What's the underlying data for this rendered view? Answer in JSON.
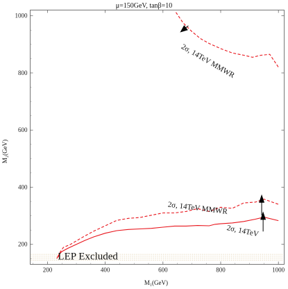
{
  "chart_data": {
    "type": "line",
    "title": "μ=150GeV, tanβ=10",
    "xlabel": "M₁(GeV)",
    "ylabel": "M₂(GeV)",
    "xlim": [
      140,
      1020
    ],
    "ylim": [
      130,
      1020
    ],
    "x_ticks": [
      200,
      400,
      600,
      800,
      1000
    ],
    "y_ticks": [
      200,
      400,
      600,
      800,
      1000
    ],
    "grid": false,
    "series": [
      {
        "name": "2σ, 14TeV",
        "style": "solid",
        "color": "#e8141b",
        "x": [
          232,
          240,
          250,
          270,
          300,
          330,
          360,
          400,
          440,
          480,
          520,
          560,
          600,
          640,
          680,
          720,
          760,
          780,
          800,
          840,
          880,
          920,
          950,
          1000
        ],
        "y": [
          150,
          165,
          175,
          186,
          200,
          214,
          226,
          239,
          248,
          252,
          254,
          256,
          260,
          264,
          264,
          266,
          265,
          270,
          272,
          275,
          280,
          288,
          295,
          283
        ]
      },
      {
        "name": "2σ, 14TeV MMWR",
        "style": "dashed",
        "color": "#e8141b",
        "x": [
          237,
          245,
          255,
          280,
          320,
          360,
          400,
          440,
          480,
          520,
          560,
          600,
          640,
          680,
          720,
          760,
          800,
          840,
          880,
          920,
          950,
          1000
        ],
        "y": [
          155,
          175,
          189,
          200,
          224,
          246,
          265,
          284,
          291,
          294,
          302,
          310,
          310,
          315,
          325,
          315,
          330,
          326,
          345,
          348,
          358,
          340
        ]
      },
      {
        "name": "2σ, 14TeV MMWR",
        "style": "dashed",
        "color": "#e8141b",
        "x": [
          645,
          670,
          700,
          730,
          760,
          800,
          840,
          880,
          910,
          940,
          970,
          1000
        ],
        "y": [
          1012,
          975,
          945,
          920,
          903,
          885,
          870,
          862,
          855,
          862,
          865,
          820
        ]
      },
      {
        "name": "LEP Excluded",
        "style": "dotted-band",
        "color": "#dcc8a0",
        "x": [
          140,
          1020
        ],
        "y_band": [
          145,
          165
        ]
      }
    ],
    "annotations": [
      {
        "text": "LEP Excluded",
        "x": 340,
        "y": 155
      },
      {
        "text": "2σ, 14TeV",
        "x": 876,
        "y": 245,
        "angle": 12
      },
      {
        "text": "2σ, 14TeV MMWR",
        "x": 720,
        "y": 325,
        "angle": 7
      },
      {
        "text": "2σ, 14TeV MMWR",
        "x": 755,
        "y": 840,
        "angle": 30
      }
    ],
    "arrows": [
      {
        "x": 942,
        "from_y": 302,
        "to_y": 375
      },
      {
        "x": 947,
        "from_y": 245,
        "to_y": 315
      },
      {
        "x": 688,
        "from_y": 965,
        "to_y": 942,
        "direction": "down-left"
      }
    ]
  }
}
